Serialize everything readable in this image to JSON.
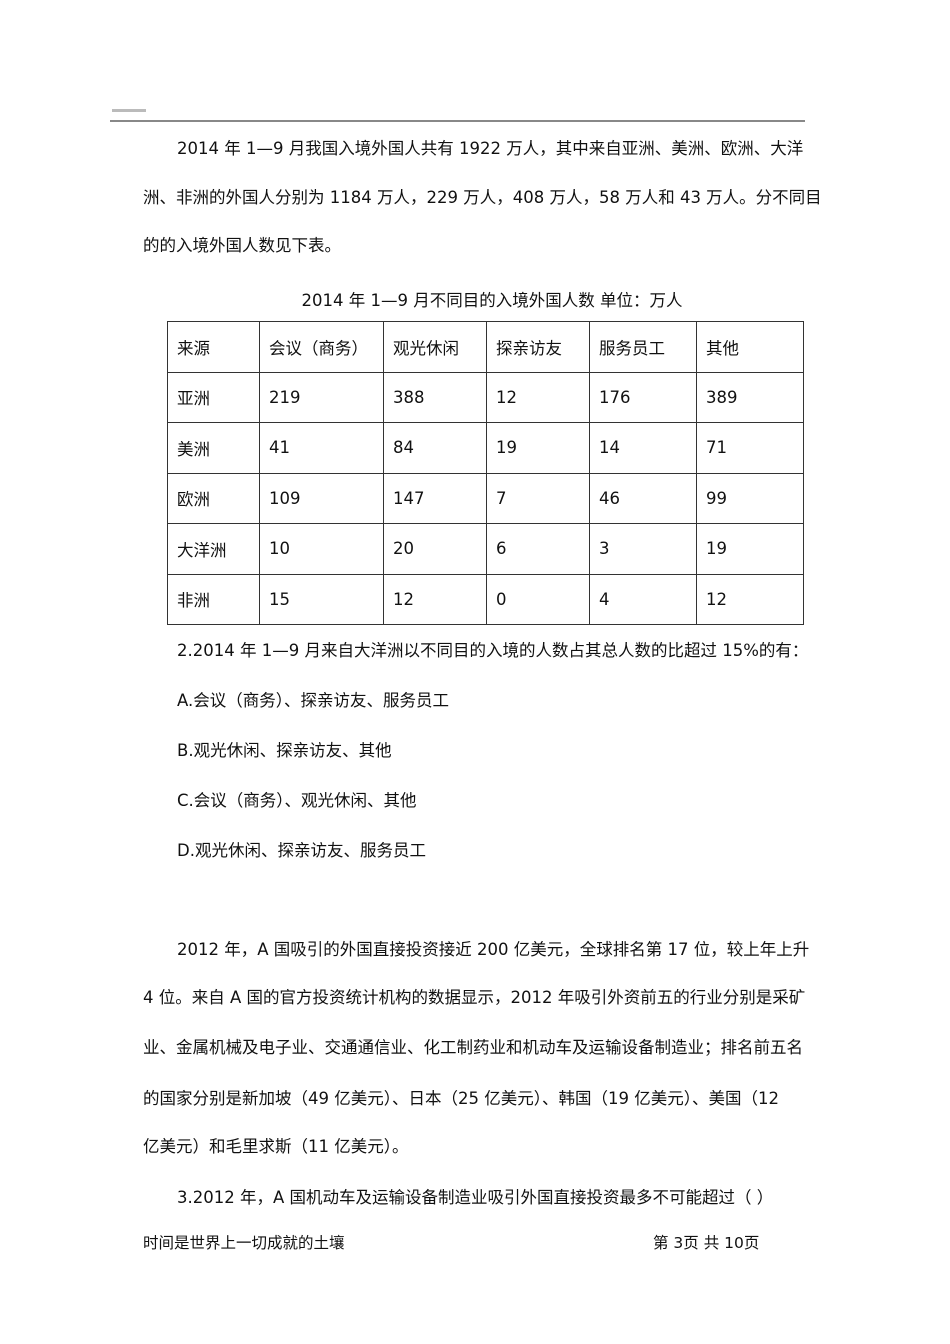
{
  "para1": [
    "2014 年 1—9 月我国入境外国人共有 1922 万人，其中来自亚洲、美洲、欧洲、大洋",
    "洲、非洲的外国人分别为 1184 万人，229 万人，408 万人，58 万人和 43 万人。分不同目",
    "的的入境外国人数见下表。"
  ],
  "table_caption": "2014 年 1—9 月不同目的入境外国人数    单位：万人",
  "table": {
    "headers": [
      "来源",
      "会议（商务）",
      "观光休闲",
      "探亲访友",
      "服务员工",
      "其他"
    ],
    "rows": [
      [
        "亚洲",
        "219",
        "388",
        "12",
        "176",
        "389"
      ],
      [
        "美洲",
        "41",
        "84",
        "19",
        "14",
        "71"
      ],
      [
        "欧洲",
        "109",
        "147",
        "7",
        "46",
        "99"
      ],
      [
        "大洋洲",
        "10",
        "20",
        "6",
        "3",
        "19"
      ],
      [
        "非洲",
        "15",
        "12",
        "0",
        "4",
        "12"
      ]
    ]
  },
  "q2": {
    "question": "2.2014 年 1—9 月来自大洋洲以不同目的入境的人数占其总人数的比超过 15%的有：",
    "options": [
      "A.会议（商务）、探亲访友、服务员工",
      "B.观光休闲、探亲访友、其他",
      "C.会议（商务）、观光休闲、其他",
      "D.观光休闲、探亲访友、服务员工"
    ]
  },
  "para2": [
    "2012 年，A 国吸引的外国直接投资接近 200 亿美元，全球排名第 17 位，较上年上升",
    "4 位。来自 A 国的官方投资统计机构的数据显示，2012 年吸引外资前五的行业分别是采矿",
    "业、金属机械及电子业、交通通信业、化工制药业和机动车及运输设备制造业；排名前五名",
    "的国家分别是新加坡（49 亿美元）、日本（25 亿美元）、韩国（19 亿美元）、美国（12",
    "亿美元）和毛里求斯（11 亿美元）。"
  ],
  "q3": "3.2012 年，A 国机动车及运输设备制造业吸引外国直接投资最多不可能超过（      ）",
  "footer": {
    "left": "时间是世界上一切成就的土壤",
    "right": "第 3页   共 10页"
  }
}
